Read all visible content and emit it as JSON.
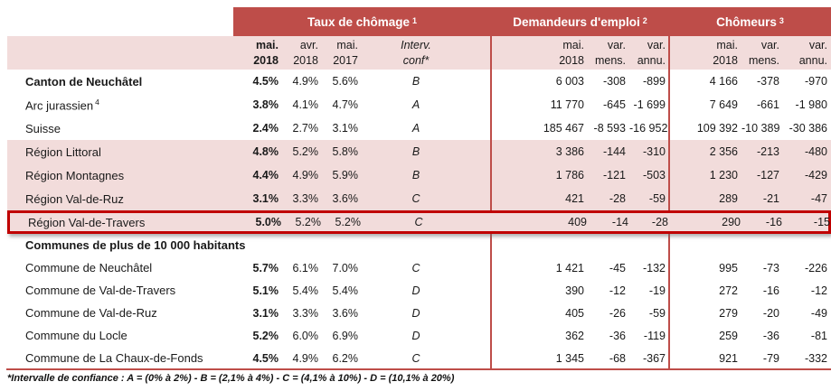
{
  "colors": {
    "band_bg": "#BE4D49",
    "row_pink": "#F2DCDB",
    "rule_red": "#BE4D49",
    "highlight_border": "#C00000"
  },
  "groups": [
    {
      "label": "Taux de chômage",
      "sup": "1"
    },
    {
      "label": "Demandeurs d'emploi",
      "sup": "2"
    },
    {
      "label": "Chômeurs",
      "sup": "3"
    }
  ],
  "subheader": {
    "cols": [
      {
        "l1": "mai.",
        "l2": "2018",
        "bold": true
      },
      {
        "l1": "avr.",
        "l2": "2018"
      },
      {
        "l1": "mai.",
        "l2": "2017"
      },
      {
        "l1": "Interv.",
        "l2": "conf*",
        "italic": true
      },
      {
        "l1": "mai.",
        "l2": "2018"
      },
      {
        "l1": "var.",
        "l2": "mens."
      },
      {
        "l1": "var.",
        "l2": "annu."
      },
      {
        "l1": "mai.",
        "l2": "2018"
      },
      {
        "l1": "var.",
        "l2": "mens."
      },
      {
        "l1": "var.",
        "l2": "annu."
      }
    ]
  },
  "rows": [
    {
      "label": "Canton de Neuchâtel",
      "bold": true,
      "style": "",
      "values": [
        "4.5%",
        "4.9%",
        "5.6%",
        "B",
        "6 003",
        "-308",
        "-899",
        "4 166",
        "-378",
        "-970"
      ]
    },
    {
      "label": "Arc jurassien",
      "sup": "4",
      "style": "",
      "values": [
        "3.8%",
        "4.1%",
        "4.7%",
        "A",
        "11 770",
        "-645",
        "-1 699",
        "7 649",
        "-661",
        "-1 980"
      ]
    },
    {
      "label": "Suisse",
      "style": "",
      "values": [
        "2.4%",
        "2.7%",
        "3.1%",
        "A",
        "185 467",
        "-8 593",
        "-16 952",
        "109 392",
        "-10 389",
        "-30 386"
      ]
    },
    {
      "label": "Région Littoral",
      "style": "pink",
      "values": [
        "4.8%",
        "5.2%",
        "5.8%",
        "B",
        "3 386",
        "-144",
        "-310",
        "2 356",
        "-213",
        "-480"
      ]
    },
    {
      "label": "Région Montagnes",
      "style": "pink",
      "values": [
        "4.4%",
        "4.9%",
        "5.9%",
        "B",
        "1 786",
        "-121",
        "-503",
        "1 230",
        "-127",
        "-429"
      ]
    },
    {
      "label": "Région Val-de-Ruz",
      "style": "pink",
      "values": [
        "3.1%",
        "3.3%",
        "3.6%",
        "C",
        "421",
        "-28",
        "-59",
        "289",
        "-21",
        "-47"
      ]
    },
    {
      "label": "Région Val-de-Travers",
      "style": "pink highlight",
      "values": [
        "5.0%",
        "5.2%",
        "5.2%",
        "C",
        "409",
        "-14",
        "-28",
        "290",
        "-16",
        "-15"
      ]
    },
    {
      "label": "Communes de plus de 10 000 habitants",
      "bold": true,
      "style": "section",
      "values": []
    },
    {
      "label": "Commune de Neuchâtel",
      "style": "small",
      "values": [
        "5.7%",
        "6.1%",
        "7.0%",
        "C",
        "1 421",
        "-45",
        "-132",
        "995",
        "-73",
        "-226"
      ]
    },
    {
      "label": "Commune de Val-de-Travers",
      "style": "small",
      "values": [
        "5.1%",
        "5.4%",
        "5.4%",
        "D",
        "390",
        "-12",
        "-19",
        "272",
        "-16",
        "-12"
      ]
    },
    {
      "label": "Commune de Val-de-Ruz",
      "style": "small",
      "values": [
        "3.1%",
        "3.3%",
        "3.6%",
        "D",
        "405",
        "-26",
        "-59",
        "279",
        "-20",
        "-49"
      ]
    },
    {
      "label": "Commune du Locle",
      "style": "small",
      "values": [
        "5.2%",
        "6.0%",
        "6.9%",
        "D",
        "362",
        "-36",
        "-119",
        "259",
        "-36",
        "-81"
      ]
    },
    {
      "label": "Commune de La Chaux-de-Fonds",
      "style": "small",
      "values": [
        "4.5%",
        "4.9%",
        "6.2%",
        "C",
        "1 345",
        "-68",
        "-367",
        "921",
        "-79",
        "-332"
      ]
    }
  ],
  "footnote": "*Intervalle de confiance : A = (0% à 2%)  -  B = (2,1% à 4%)  -  C = (4,1% à 10%)  -  D = (10,1% à 20%)"
}
